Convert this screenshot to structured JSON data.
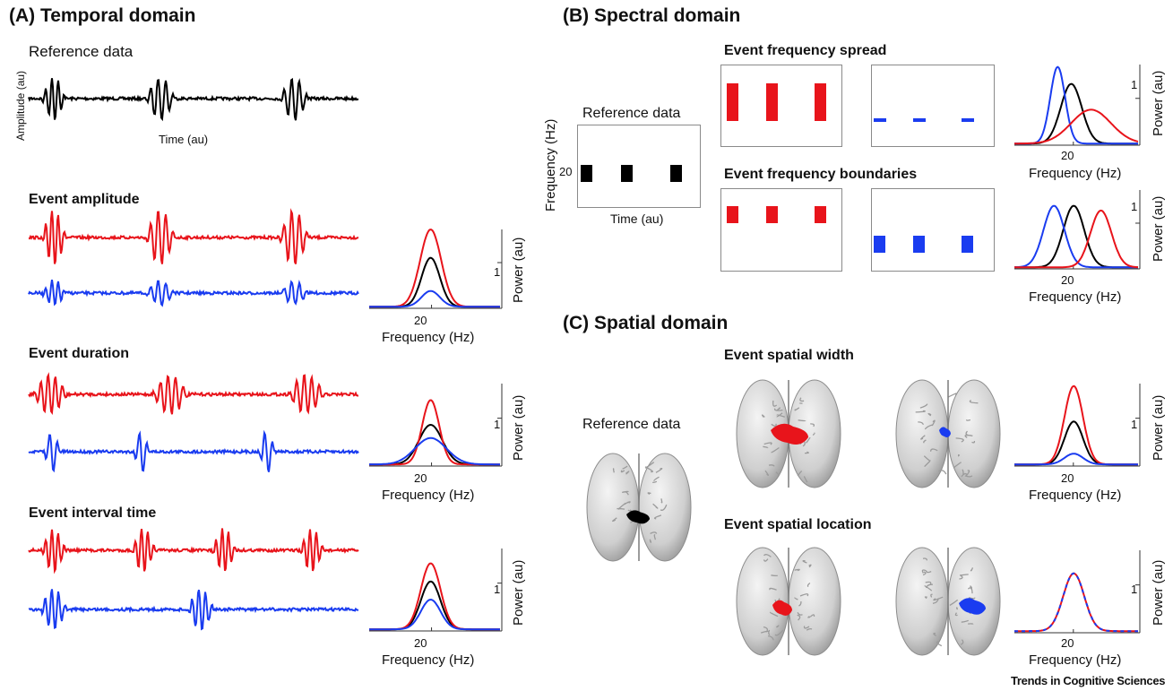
{
  "colors": {
    "reference": "#000000",
    "condition_a": "#e8141b",
    "condition_b": "#1a3cf0"
  },
  "panel_a": {
    "title": "(A) Temporal domain",
    "reference": {
      "title": "Reference data",
      "ylabel": "Amplitude (au)",
      "xlabel": "Time (au)"
    },
    "rows": [
      {
        "title": "Event amplitude"
      },
      {
        "title": "Event duration"
      },
      {
        "title": "Event interval time"
      }
    ]
  },
  "panel_b": {
    "title": "(B) Spectral domain",
    "reference": {
      "title": "Reference data",
      "ylabel": "Frequency (Hz)",
      "xlabel": "Time (au)",
      "ytick": "20"
    },
    "rows": [
      {
        "title": "Event frequency spread"
      },
      {
        "title": "Event frequency boundaries"
      }
    ]
  },
  "panel_c": {
    "title": "(C) Spatial domain",
    "reference": {
      "title": "Reference data"
    },
    "rows": [
      {
        "title": "Event spatial width"
      },
      {
        "title": "Event spatial location"
      }
    ]
  },
  "spectrum_axes": {
    "xlabel": "Frequency (Hz)",
    "ylabel": "Power (au)",
    "xtick": "20",
    "ytick": "1"
  },
  "credit": "Trends in Cognitive Sciences"
}
